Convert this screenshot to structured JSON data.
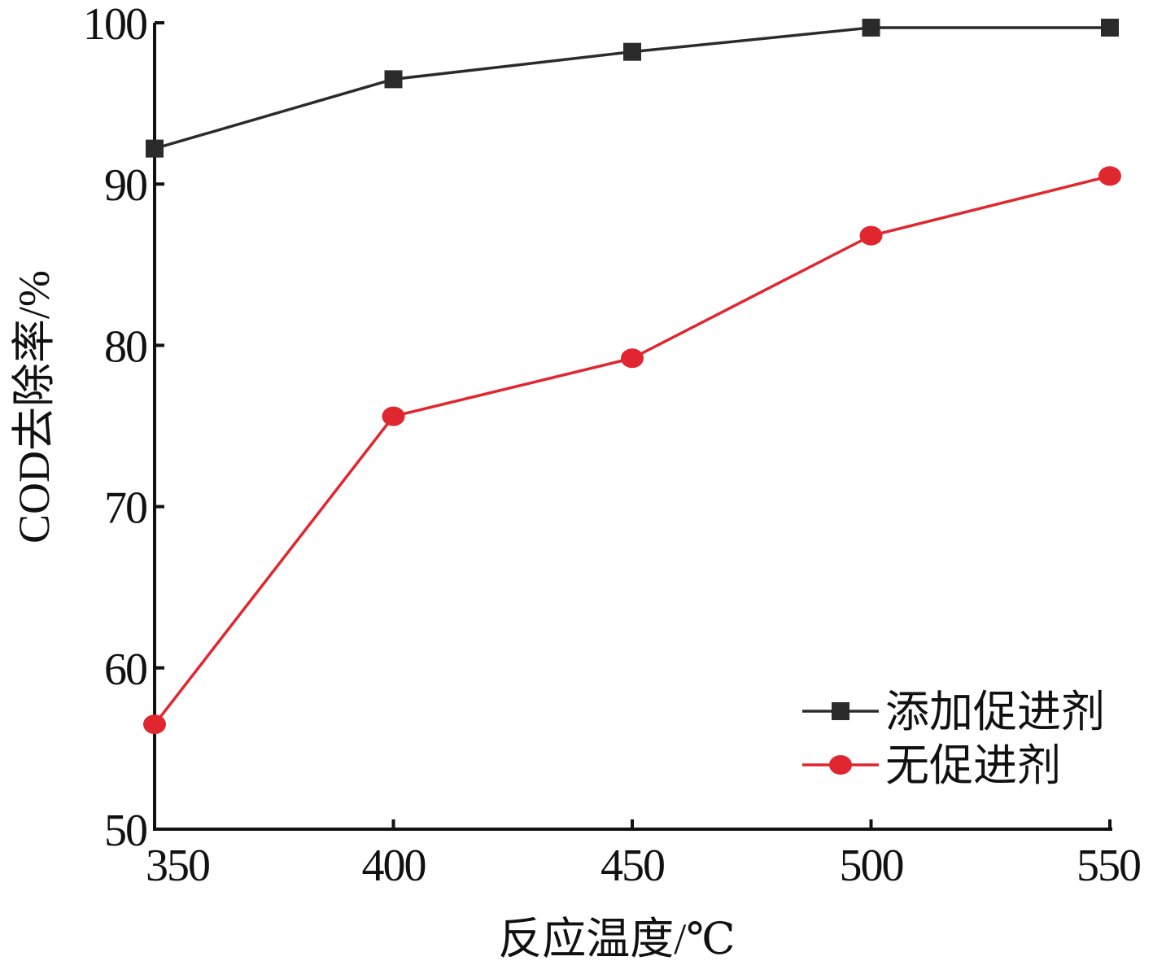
{
  "chart_data": {
    "type": "line",
    "xlabel": "反应温度/℃",
    "ylabel": "COD去除率/%",
    "x": [
      350,
      400,
      450,
      500,
      550
    ],
    "xlim": [
      350,
      550
    ],
    "ylim": [
      50,
      100
    ],
    "xticks": [
      "350",
      "400",
      "450",
      "500",
      "550"
    ],
    "yticks": [
      "50",
      "60",
      "70",
      "80",
      "90",
      "100"
    ],
    "grid": false,
    "legend_position": "bottom-right",
    "series": [
      {
        "name": "添加促进剂",
        "values": [
          92.2,
          96.5,
          98.2,
          99.7,
          99.7
        ],
        "color": "#2b2b2b",
        "marker": "square"
      },
      {
        "name": "无促进剂",
        "values": [
          56.5,
          75.6,
          79.2,
          86.8,
          90.5
        ],
        "color": "#e0272f",
        "marker": "circle"
      }
    ]
  }
}
